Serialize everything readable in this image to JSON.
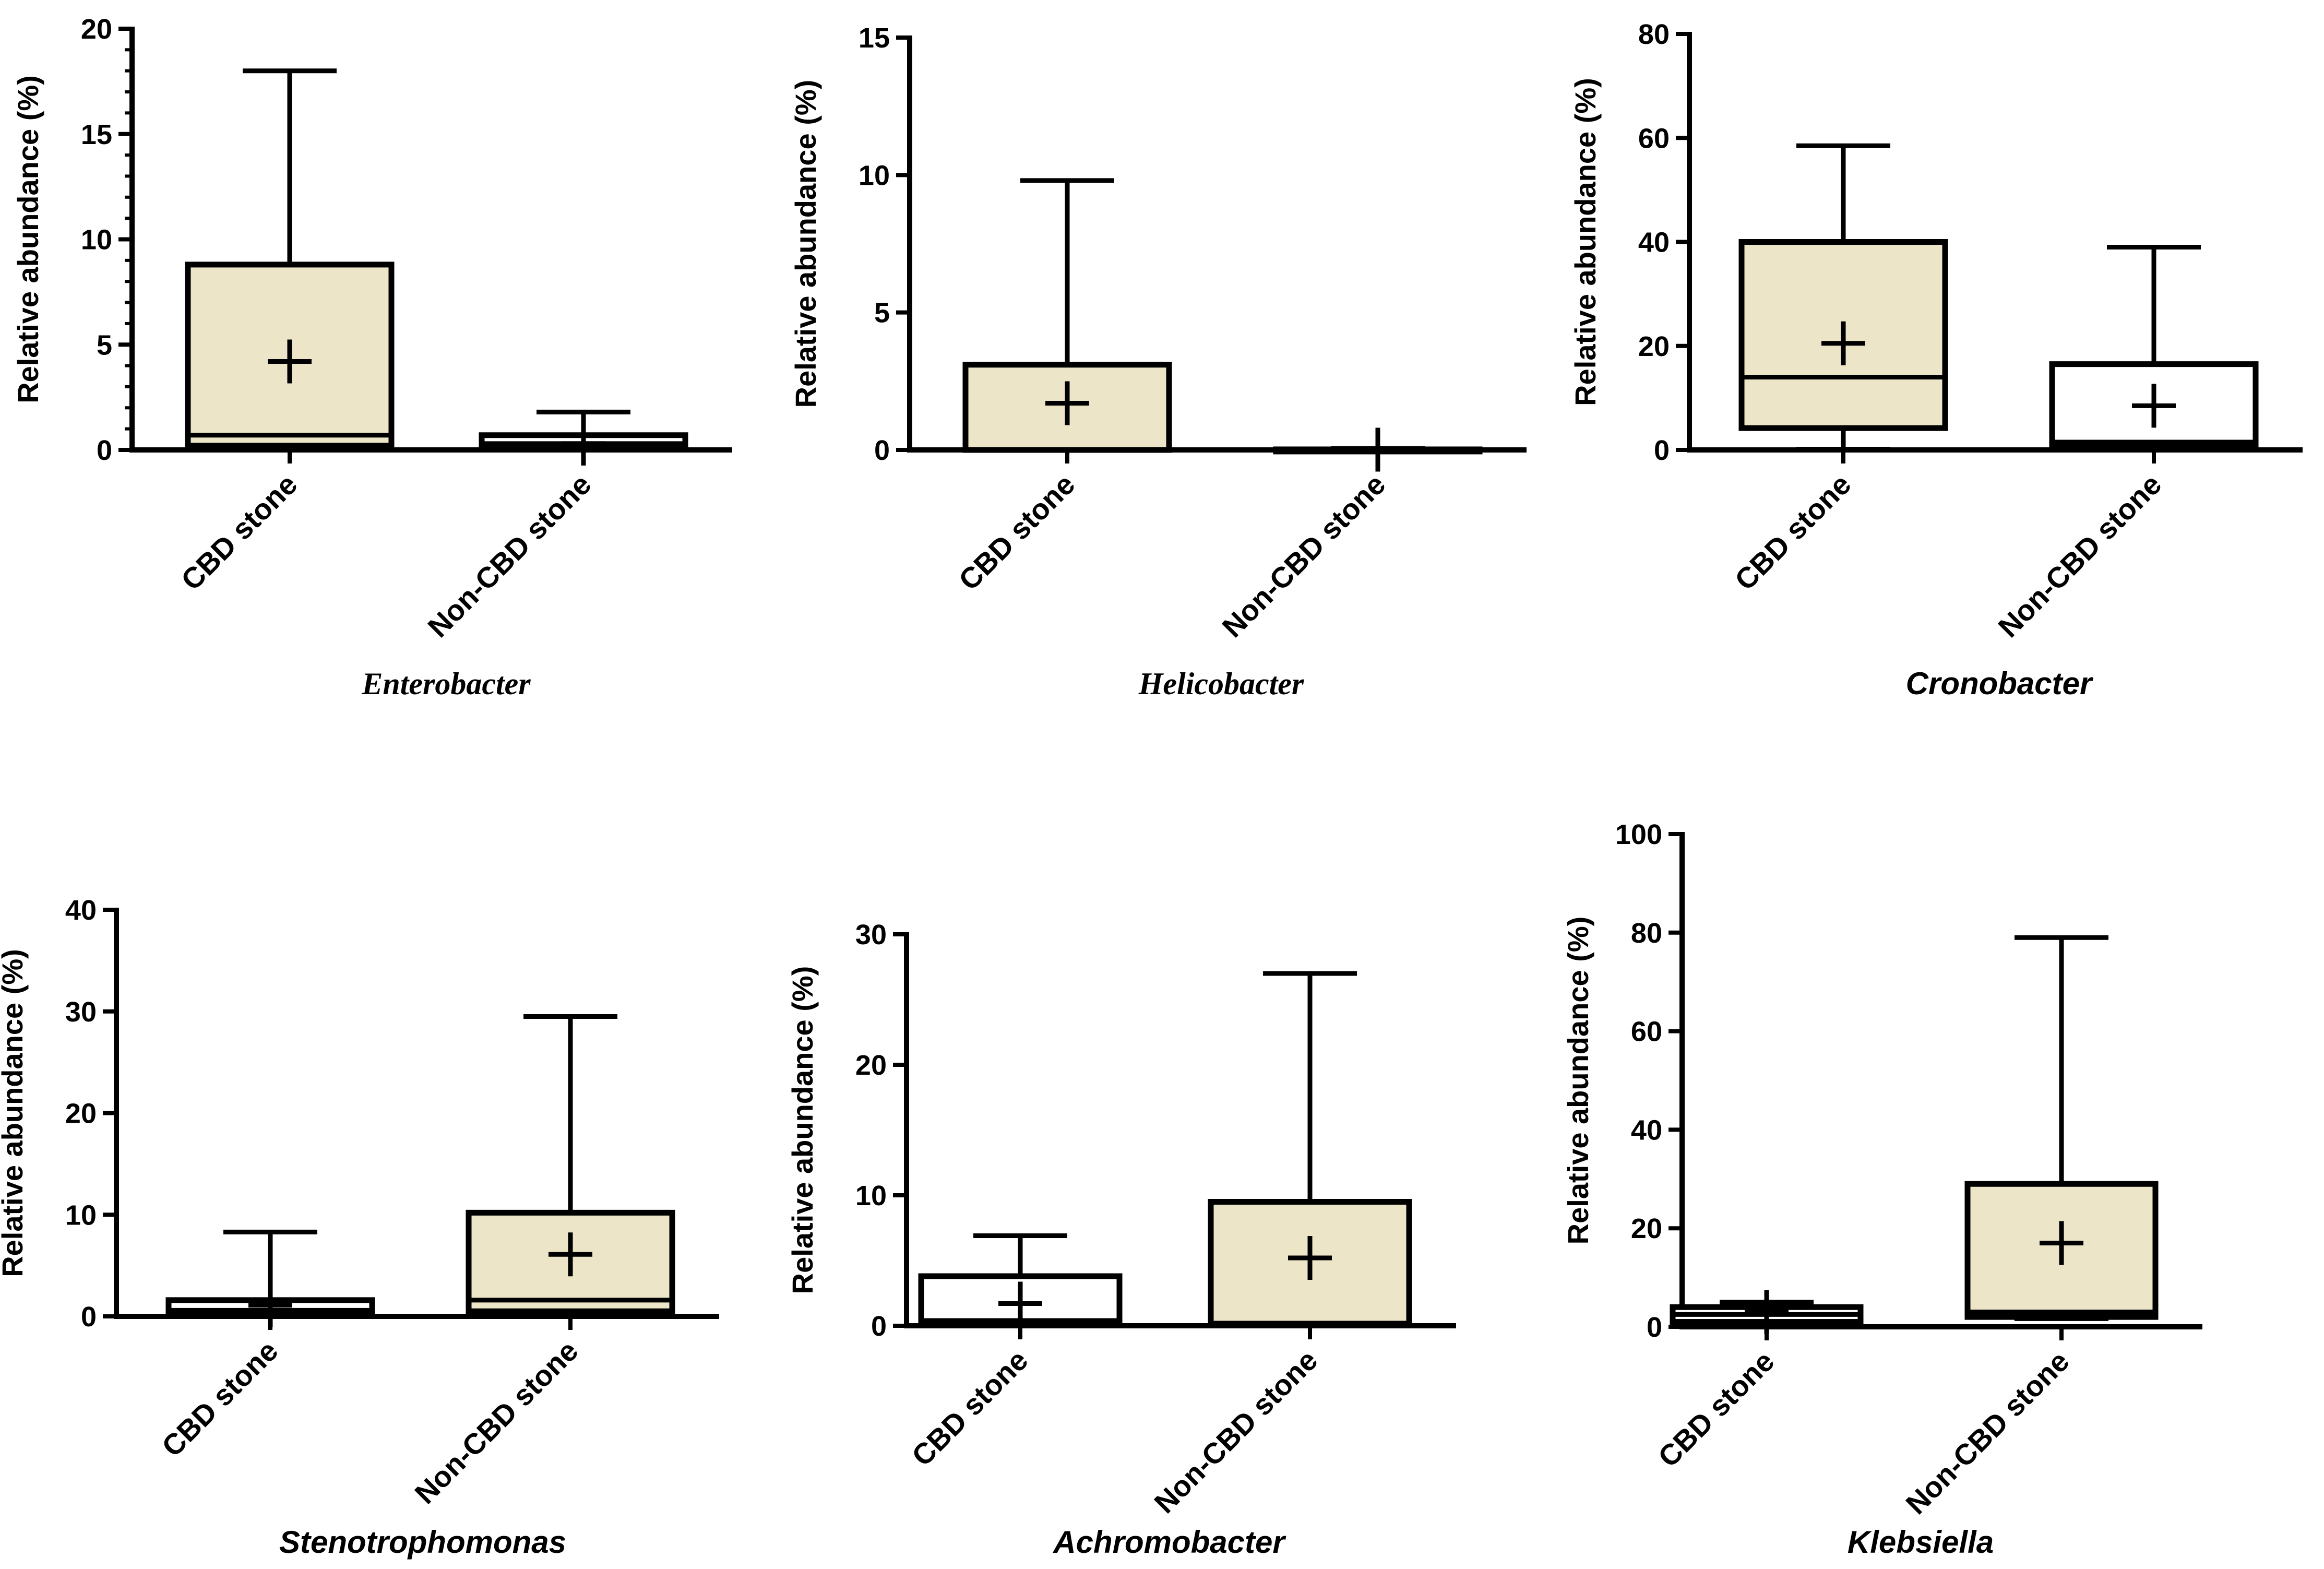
{
  "colors": {
    "filled_box": "#ede5c8",
    "white_box": "#ffffff",
    "ink": "#000000"
  },
  "chart_data": [
    {
      "type": "boxplot",
      "title": "Enterobacter",
      "ylabel": "Relative abundance (%)",
      "ylim": [
        0,
        20
      ],
      "yticks": [
        0,
        5,
        10,
        15,
        20
      ],
      "categories": [
        "CBD stone",
        "Non-CBD stone"
      ],
      "boxes": [
        {
          "label": "CBD stone",
          "min": 0,
          "q1": 0.2,
          "median": 0.7,
          "q3": 8.8,
          "max": 18,
          "mean": 4.2,
          "fill": "filled"
        },
        {
          "label": "Non-CBD stone",
          "min": 0,
          "q1": 0.1,
          "median": 0.3,
          "q3": 0.7,
          "max": 1.8,
          "mean": 0.3,
          "fill": "white"
        }
      ]
    },
    {
      "type": "boxplot",
      "title": "Helicobacter",
      "ylabel": "Relative abundance (%)",
      "ylim": [
        0,
        15
      ],
      "yticks": [
        0,
        5,
        10,
        15
      ],
      "categories": [
        "CBD stone",
        "Non-CBD stone"
      ],
      "boxes": [
        {
          "label": "CBD stone",
          "min": 0,
          "q1": 0,
          "median": 0,
          "q3": 3.1,
          "max": 9.8,
          "mean": 1.7,
          "fill": "filled"
        },
        {
          "label": "Non-CBD stone",
          "min": 0,
          "q1": 0,
          "median": 0,
          "q3": 0.02,
          "max": 0.05,
          "mean": 0.01,
          "fill": "white"
        }
      ]
    },
    {
      "type": "boxplot",
      "title": "Cronobacter",
      "ylabel": "Relative abundance (%)",
      "ylim": [
        0,
        80
      ],
      "yticks": [
        0,
        20,
        40,
        60,
        80
      ],
      "categories": [
        "CBD stone",
        "Non-CBD stone"
      ],
      "boxes": [
        {
          "label": "CBD stone",
          "min": 0.3,
          "q1": 4.2,
          "median": 14,
          "q3": 40,
          "max": 58.5,
          "mean": 20.5,
          "fill": "filled"
        },
        {
          "label": "Non-CBD stone",
          "min": 0.3,
          "q1": 0.8,
          "median": 1.5,
          "q3": 16.5,
          "max": 39,
          "mean": 8.5,
          "fill": "white"
        }
      ]
    },
    {
      "type": "boxplot",
      "title": "Stenotrophomonas",
      "ylabel": "Relative abundance (%)",
      "ylim": [
        0,
        40
      ],
      "yticks": [
        0,
        10,
        20,
        30,
        40
      ],
      "categories": [
        "CBD stone",
        "Non-CBD stone"
      ],
      "boxes": [
        {
          "label": "CBD stone",
          "min": 0,
          "q1": 0.2,
          "median": 0.6,
          "q3": 1.6,
          "max": 8.3,
          "mean": 1.1,
          "fill": "white"
        },
        {
          "label": "Non-CBD stone",
          "min": 0,
          "q1": 0.5,
          "median": 1.6,
          "q3": 10.2,
          "max": 29.5,
          "mean": 6.1,
          "fill": "filled"
        }
      ]
    },
    {
      "type": "boxplot",
      "title": "Achromobacter",
      "ylabel": "Relative abundance (%)",
      "ylim": [
        0,
        30
      ],
      "yticks": [
        0,
        10,
        20,
        30
      ],
      "categories": [
        "CBD stone",
        "Non-CBD stone"
      ],
      "boxes": [
        {
          "label": "CBD stone",
          "min": 0,
          "q1": 0.1,
          "median": 0.4,
          "q3": 3.8,
          "max": 6.9,
          "mean": 1.7,
          "fill": "white"
        },
        {
          "label": "Non-CBD stone",
          "min": 0,
          "q1": 0.1,
          "median": 0.2,
          "q3": 9.5,
          "max": 27,
          "mean": 5.2,
          "fill": "filled"
        }
      ]
    },
    {
      "type": "boxplot",
      "title": "Klebsiella",
      "ylabel": "Relative abundance (%)",
      "ylim": [
        0,
        100
      ],
      "yticks": [
        0,
        20,
        40,
        60,
        80,
        100
      ],
      "categories": [
        "CBD stone",
        "Non-CBD stone"
      ],
      "boxes": [
        {
          "label": "CBD stone",
          "min": 0.3,
          "q1": 1,
          "median": 2.5,
          "q3": 4,
          "max": 5,
          "mean": 3,
          "fill": "white"
        },
        {
          "label": "Non-CBD stone",
          "min": 1.5,
          "q1": 2,
          "median": 3,
          "q3": 29,
          "max": 79,
          "mean": 17,
          "fill": "filled"
        }
      ]
    }
  ]
}
